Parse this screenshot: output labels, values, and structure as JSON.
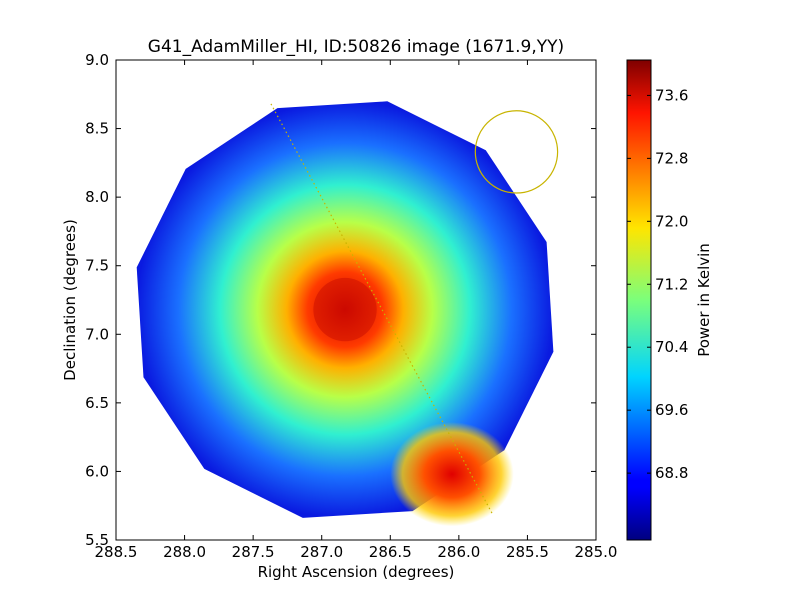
{
  "chart_data": {
    "type": "heatmap",
    "title": "G41_AdamMiller_HI, ID:50826 image (1671.9,YY)",
    "xlabel": "Right Ascension (degrees)",
    "ylabel": "Declination (degrees)",
    "xlim": [
      288.5,
      285.0
    ],
    "ylim": [
      5.5,
      9.0
    ],
    "xticks": [
      288.5,
      288.0,
      287.5,
      287.0,
      286.5,
      286.0,
      285.5,
      285.0
    ],
    "xtick_labels": [
      "288.5",
      "288.0",
      "287.5",
      "287.0",
      "286.5",
      "286.0",
      "285.5",
      "285.0"
    ],
    "yticks": [
      5.5,
      6.0,
      6.5,
      7.0,
      7.5,
      8.0,
      8.5,
      9.0
    ],
    "ytick_labels": [
      "5.5",
      "6.0",
      "6.5",
      "7.0",
      "7.5",
      "8.0",
      "8.5",
      "9.0"
    ],
    "colorbar": {
      "label": "Power in Kelvin",
      "range": [
        67.95,
        74.05
      ],
      "ticks": [
        68.8,
        69.6,
        70.4,
        71.2,
        72.0,
        72.8,
        73.6
      ],
      "tick_labels": [
        "68.8",
        "69.6",
        "70.4",
        "71.2",
        "72.0",
        "72.8",
        "73.6"
      ],
      "colormap": "jet"
    },
    "image": {
      "center": [
        286.83,
        7.18
      ],
      "radius_deg": 1.55,
      "bright_core": {
        "center": [
          286.83,
          7.18
        ],
        "radius_deg": 0.42,
        "value": 73.3
      },
      "bright_lobe": {
        "center": [
          286.05,
          5.98
        ],
        "value": 73.5
      },
      "outer_background_value": 68.6
    },
    "overlays": {
      "beam_circle": {
        "center": [
          285.58,
          8.33
        ],
        "radius_deg": 0.3,
        "color": "#c8b400"
      },
      "dotted_line": {
        "from": [
          287.37,
          8.68
        ],
        "to": [
          285.75,
          5.68
        ],
        "color": "#c8b400"
      }
    },
    "grid": false
  }
}
